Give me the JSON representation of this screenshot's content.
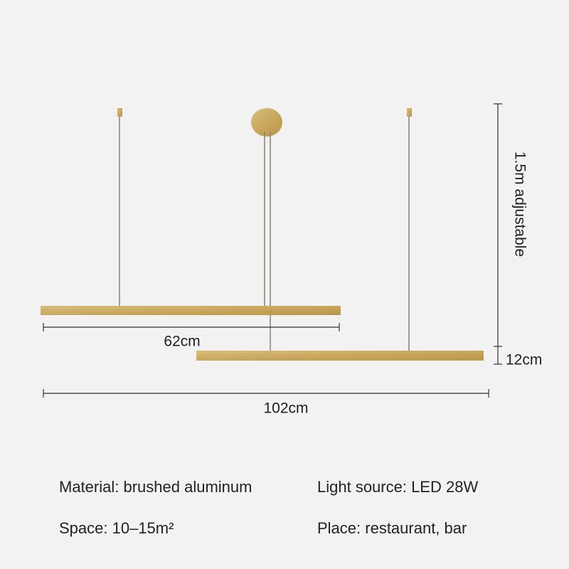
{
  "dimensions": {
    "height": "1.5m adjustable",
    "drop": "12cm",
    "short_length": "62cm",
    "long_length": "102cm"
  },
  "specs": [
    "Material: brushed aluminum",
    "Light source: LED 28W",
    "Space: 10–15m²",
    "Place: restaurant, bar"
  ]
}
